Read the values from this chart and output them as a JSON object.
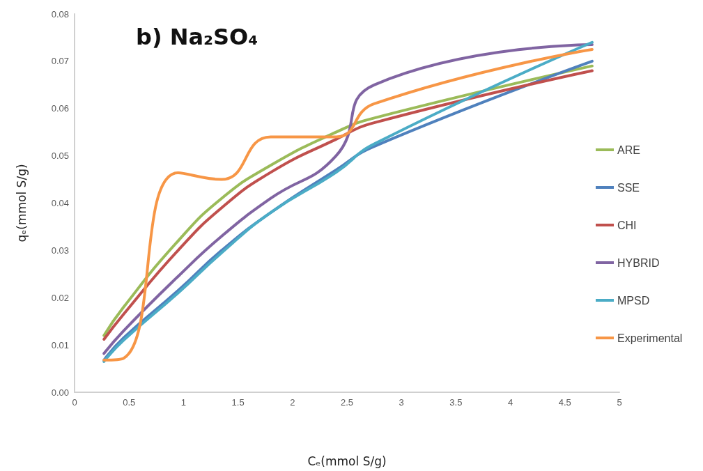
{
  "chart_data": {
    "type": "line",
    "title": "b) Na₂SO₄",
    "xlabel": "Cₑ(mmol S/g)",
    "ylabel": "qₑ(mmol S/g)",
    "x": [
      0.27,
      0.45,
      0.95,
      1.35,
      1.8,
      2.4,
      2.75,
      4.75
    ],
    "series": [
      {
        "name": "ARE",
        "color": "#9bbb59",
        "values": [
          0.012,
          0.018,
          0.032,
          0.041,
          0.048,
          0.055,
          0.058,
          0.069
        ]
      },
      {
        "name": "SSE",
        "color": "#4f81bd",
        "values": [
          0.0068,
          0.0115,
          0.0215,
          0.03,
          0.038,
          0.047,
          0.052,
          0.07
        ]
      },
      {
        "name": "CHI",
        "color": "#c0504d",
        "values": [
          0.0112,
          0.0165,
          0.03,
          0.039,
          0.0465,
          0.0535,
          0.057,
          0.068
        ]
      },
      {
        "name": "HYBRID",
        "color": "#8064a2",
        "values": [
          0.0082,
          0.013,
          0.0245,
          0.033,
          0.041,
          0.05,
          0.065,
          0.0735
        ]
      },
      {
        "name": "MPSD",
        "color": "#4bacc6",
        "values": [
          0.0065,
          0.011,
          0.021,
          0.0295,
          0.038,
          0.0465,
          0.0525,
          0.074
        ]
      },
      {
        "name": "Experimental",
        "color": "#f79646",
        "values": [
          0.0068,
          0.0072,
          0.0464,
          0.045,
          0.054,
          0.054,
          0.061,
          0.0725
        ]
      }
    ],
    "xlim": [
      0,
      5
    ],
    "xticks": [
      0,
      0.5,
      1,
      1.5,
      2,
      2.5,
      3,
      3.5,
      4,
      4.5,
      5
    ],
    "ylim": [
      0,
      0.08
    ],
    "yticks": [
      {
        "value": 0,
        "label": "0.00"
      },
      0.01,
      0.02,
      0.03,
      0.04,
      0.05,
      0.06,
      0.07,
      0.08
    ],
    "legend": "right",
    "grid": false,
    "marker": "none",
    "line_style": "solid"
  }
}
